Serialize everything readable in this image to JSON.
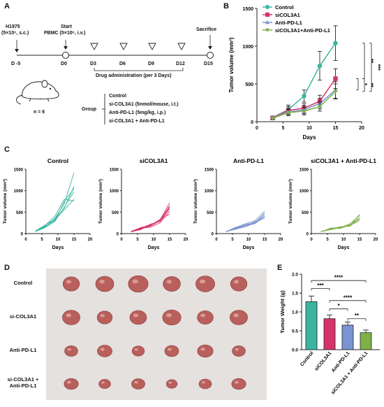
{
  "panels": {
    "A": "A",
    "B": "B",
    "C": "C",
    "D": "D",
    "E": "E"
  },
  "timeline": {
    "events": [
      {
        "day": "D -5",
        "label": "H1975",
        "sub": "(5×10⁶, s.c.)"
      },
      {
        "day": "D0",
        "label": "Start",
        "sub": "PBMC (5×10⁶, i.v.)"
      },
      {
        "day": "D3"
      },
      {
        "day": "D6"
      },
      {
        "day": "D9"
      },
      {
        "day": "D12"
      },
      {
        "day": "D15",
        "label": "Sacrifice"
      }
    ],
    "drug_admin": "Drug administration (per 3 Days)",
    "n": "n = 6",
    "group_label": "Group",
    "groups": [
      "Control",
      "si-COL3A1 (5nmol/mouse, i.t.)",
      "Anti-PD-L1 (5mg/kg, i.p.)",
      "si-COL3A1 + Anti-PD-L1"
    ]
  },
  "chart_data": [
    {
      "panel": "B",
      "type": "line",
      "xlabel": "Days",
      "ylabel": "Tumor volume (mm³)",
      "xlim": [
        0,
        20
      ],
      "ylim": [
        0,
        1500
      ],
      "xticks": [
        0,
        5,
        10,
        15,
        20
      ],
      "yticks": [
        0,
        500,
        1000,
        1500
      ],
      "legend": "top-left",
      "x": [
        3,
        6,
        9,
        12,
        15
      ],
      "series": [
        {
          "name": "Control",
          "color": "#3bb5a0",
          "marker": "circle",
          "values": [
            55,
            160,
            340,
            740,
            1040
          ],
          "err": [
            20,
            60,
            80,
            190,
            230
          ]
        },
        {
          "name": "siCOL3A1",
          "color": "#d6336c",
          "marker": "square",
          "values": [
            50,
            150,
            180,
            270,
            570
          ],
          "err": [
            20,
            50,
            60,
            80,
            130
          ]
        },
        {
          "name": "Anti-PD-L1",
          "color": "#7b93d1",
          "marker": "triangle",
          "values": [
            48,
            130,
            160,
            240,
            420
          ],
          "err": [
            15,
            45,
            55,
            70,
            110
          ]
        },
        {
          "name": "siCOL3A1+Anti-PD-L1",
          "color": "#7fb04a",
          "marker": "triangle-down",
          "values": [
            45,
            120,
            140,
            200,
            400
          ],
          "err": [
            15,
            40,
            50,
            60,
            100
          ]
        }
      ],
      "significance": [
        "**",
        "*",
        "**",
        "***"
      ]
    },
    {
      "panel": "C",
      "type": "line",
      "ylabel": "Tumor volume (mm³)",
      "xlabel": "Days",
      "xlim": [
        0,
        20
      ],
      "ylim": [
        0,
        1500
      ],
      "xticks": [
        0,
        5,
        10,
        15,
        20
      ],
      "yticks": [
        0,
        500,
        1000,
        1500
      ],
      "x": [
        3,
        6,
        9,
        12,
        15
      ],
      "subplots": [
        {
          "title": "Control",
          "color": "#3bb5a0",
          "lines": [
            [
              50,
              150,
              350,
              700,
              1420
            ],
            [
              60,
              200,
              330,
              600,
              1100
            ],
            [
              50,
              170,
              300,
              750,
              1050
            ],
            [
              45,
              140,
              280,
              620,
              980
            ],
            [
              55,
              190,
              400,
              800,
              760
            ],
            [
              50,
              160,
              320,
              560,
              800
            ]
          ]
        },
        {
          "title": "siCOL3A1",
          "color": "#d6336c",
          "lines": [
            [
              50,
              110,
              200,
              320,
              720
            ],
            [
              55,
              130,
              170,
              300,
              650
            ],
            [
              45,
              90,
              220,
              280,
              580
            ],
            [
              50,
              120,
              150,
              250,
              520
            ],
            [
              40,
              100,
              190,
              330,
              450
            ],
            [
              50,
              140,
              210,
              290,
              620
            ]
          ]
        },
        {
          "title": "Anti-PD-L1",
          "color": "#7b93d1",
          "lines": [
            [
              50,
              140,
              230,
              300,
              520
            ],
            [
              45,
              120,
              200,
              250,
              480
            ],
            [
              55,
              110,
              180,
              230,
              410
            ],
            [
              40,
              150,
              170,
              280,
              390
            ],
            [
              50,
              130,
              210,
              260,
              360
            ],
            [
              48,
              100,
              160,
              240,
              450
            ]
          ]
        },
        {
          "title": "siCOL3A1 + Anti-PD-L1",
          "color": "#7fb04a",
          "lines": [
            [
              45,
              120,
              150,
              180,
              450
            ],
            [
              50,
              90,
              140,
              230,
              420
            ],
            [
              40,
              130,
              120,
              200,
              380
            ],
            [
              48,
              110,
              160,
              170,
              350
            ],
            [
              42,
              100,
              130,
              210,
              330
            ],
            [
              46,
              115,
              145,
              190,
              300
            ]
          ]
        }
      ]
    },
    {
      "panel": "E",
      "type": "bar",
      "ylabel": "Tumor Weight (g)",
      "ylim": [
        0,
        2.0
      ],
      "yticks": [
        0,
        0.5,
        1.0,
        1.5,
        2.0
      ],
      "categories": [
        "Control",
        "siCOL3A1",
        "Anti-PD-L1",
        "siCOL3A1 + Anti-PD-L1"
      ],
      "values": [
        1.27,
        0.82,
        0.65,
        0.45
      ],
      "err": [
        0.15,
        0.1,
        0.08,
        0.07
      ],
      "colors": [
        "#3bb5a0",
        "#d6336c",
        "#7b93d1",
        "#7fb04a"
      ],
      "significance": [
        "****",
        "***",
        "****",
        "*",
        "**"
      ]
    }
  ],
  "photo": {
    "rows": [
      "Control",
      "si-COL3A1",
      "Anti-PD-L1",
      "si-COL3A1 +\nAnti-PD-L1"
    ],
    "columns": 6,
    "background": "#e4e1df",
    "tumor_color": "#b9605c"
  }
}
